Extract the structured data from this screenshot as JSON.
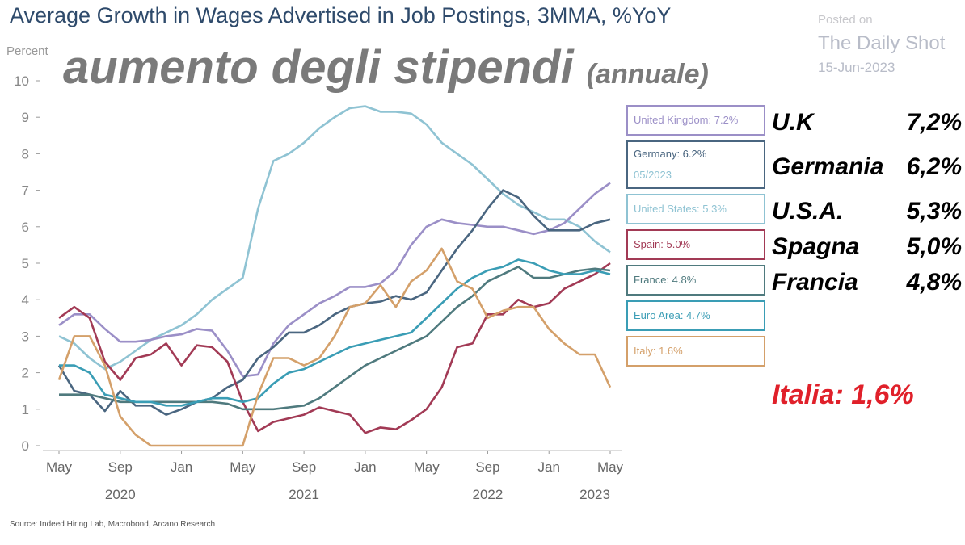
{
  "title": "Average Growth in Wages Advertised in Job Postings, 3MMA, %YoY",
  "overlay_title": "aumento degli stipendi",
  "overlay_subtitle": "(annuale)",
  "watermark": {
    "posted": "Posted on",
    "site": "The Daily Shot",
    "date": "15-Jun-2023"
  },
  "source": "Source: Indeed Hiring Lab, Macrobond, Arcano Research",
  "legend_boxes": [
    "United Kingdom: 7.2%",
    "Germany: 6.2%",
    "05/2023",
    "United States: 5.3%",
    "Spain: 5.0%",
    "France: 4.8%",
    "Euro Area: 4.7%",
    "Italy: 1.6%"
  ],
  "annotations": [
    {
      "name": "U.K",
      "value": "7,2%"
    },
    {
      "name": "Germania",
      "value": "6,2%"
    },
    {
      "name": "U.S.A.",
      "value": "5,3%"
    },
    {
      "name": "Spagna",
      "value": "5,0%"
    },
    {
      "name": "Francia",
      "value": "4,8%"
    },
    {
      "name": "Italia: 1,6%",
      "value": ""
    }
  ],
  "chart_data": {
    "type": "line",
    "title": "Average Growth in Wages Advertised in Job Postings, 3MMA, %YoY",
    "ylabel": "Percent",
    "ylim": [
      0,
      10
    ],
    "yticks": [
      "0",
      "1",
      "2",
      "3",
      "4",
      "5",
      "6",
      "7",
      "8",
      "9",
      "10"
    ],
    "x_start": "2020-05",
    "x_end": "2023-05",
    "frequency": "monthly",
    "xtick_labels": [
      "May",
      "Sep",
      "Jan",
      "May",
      "Sep",
      "Jan",
      "May",
      "Sep",
      "Jan",
      "May"
    ],
    "year_labels": [
      "2020",
      "2021",
      "2022",
      "2023"
    ],
    "series": [
      {
        "name": "United States",
        "color": "#8fc3d3",
        "values": [
          3.0,
          2.8,
          2.4,
          2.1,
          2.3,
          2.6,
          2.9,
          3.1,
          3.3,
          3.6,
          4.0,
          4.3,
          4.6,
          6.5,
          7.8,
          8.0,
          8.3,
          8.7,
          9.0,
          9.25,
          9.3,
          9.15,
          9.15,
          9.1,
          8.8,
          8.3,
          8.0,
          7.7,
          7.3,
          6.9,
          6.6,
          6.4,
          6.2,
          6.2,
          6.0,
          5.6,
          5.3
        ]
      },
      {
        "name": "United Kingdom",
        "color": "#9b8fc7",
        "values": [
          3.3,
          3.6,
          3.6,
          3.2,
          2.85,
          2.85,
          2.9,
          3.0,
          3.05,
          3.2,
          3.15,
          2.6,
          1.9,
          1.95,
          2.8,
          3.3,
          3.6,
          3.9,
          4.1,
          4.35,
          4.35,
          4.45,
          4.8,
          5.5,
          6.0,
          6.2,
          6.1,
          6.05,
          6.0,
          6.0,
          5.9,
          5.8,
          5.9,
          6.1,
          6.5,
          6.9,
          7.2
        ]
      },
      {
        "name": "Germany",
        "color": "#4a6680",
        "values": [
          2.2,
          1.5,
          1.4,
          0.95,
          1.5,
          1.1,
          1.1,
          0.85,
          1.0,
          1.2,
          1.3,
          1.6,
          1.8,
          2.4,
          2.7,
          3.1,
          3.1,
          3.3,
          3.6,
          3.8,
          3.9,
          3.95,
          4.1,
          4.0,
          4.2,
          4.8,
          5.4,
          5.9,
          6.5,
          7.0,
          6.8,
          6.3,
          5.9,
          5.9,
          5.9,
          6.1,
          6.2
        ]
      },
      {
        "name": "Spain",
        "color": "#a23a55",
        "values": [
          3.5,
          3.8,
          3.5,
          2.3,
          1.8,
          2.4,
          2.5,
          2.8,
          2.2,
          2.75,
          2.7,
          2.3,
          1.2,
          0.4,
          0.65,
          0.75,
          0.85,
          1.05,
          0.95,
          0.85,
          0.35,
          0.5,
          0.45,
          0.7,
          1.0,
          1.6,
          2.7,
          2.8,
          3.6,
          3.6,
          4.0,
          3.8,
          3.9,
          4.3,
          4.5,
          4.7,
          5.0
        ]
      },
      {
        "name": "France",
        "color": "#4f7a7e",
        "values": [
          1.4,
          1.4,
          1.4,
          1.3,
          1.2,
          1.2,
          1.2,
          1.2,
          1.2,
          1.2,
          1.2,
          1.15,
          1.0,
          1.0,
          1.0,
          1.05,
          1.1,
          1.3,
          1.6,
          1.9,
          2.2,
          2.4,
          2.6,
          2.8,
          3.0,
          3.4,
          3.8,
          4.1,
          4.5,
          4.7,
          4.9,
          4.6,
          4.6,
          4.7,
          4.8,
          4.85,
          4.8
        ]
      },
      {
        "name": "Euro Area",
        "color": "#3a9db5",
        "values": [
          2.2,
          2.2,
          2.0,
          1.4,
          1.3,
          1.2,
          1.2,
          1.1,
          1.1,
          1.2,
          1.3,
          1.3,
          1.2,
          1.3,
          1.7,
          2.0,
          2.1,
          2.3,
          2.5,
          2.7,
          2.8,
          2.9,
          3.0,
          3.1,
          3.5,
          3.9,
          4.3,
          4.6,
          4.8,
          4.9,
          5.1,
          5.0,
          4.8,
          4.7,
          4.7,
          4.8,
          4.7
        ]
      },
      {
        "name": "Italy",
        "color": "#d4a06a",
        "values": [
          1.8,
          3.0,
          3.0,
          2.2,
          0.8,
          0.3,
          0,
          0,
          0,
          0,
          0,
          0,
          0,
          1.4,
          2.4,
          2.4,
          2.2,
          2.4,
          3.0,
          3.8,
          3.9,
          4.4,
          3.8,
          4.5,
          4.8,
          5.4,
          4.5,
          4.3,
          3.5,
          3.7,
          3.8,
          3.8,
          3.2,
          2.8,
          2.5,
          2.5,
          1.6
        ]
      }
    ]
  }
}
